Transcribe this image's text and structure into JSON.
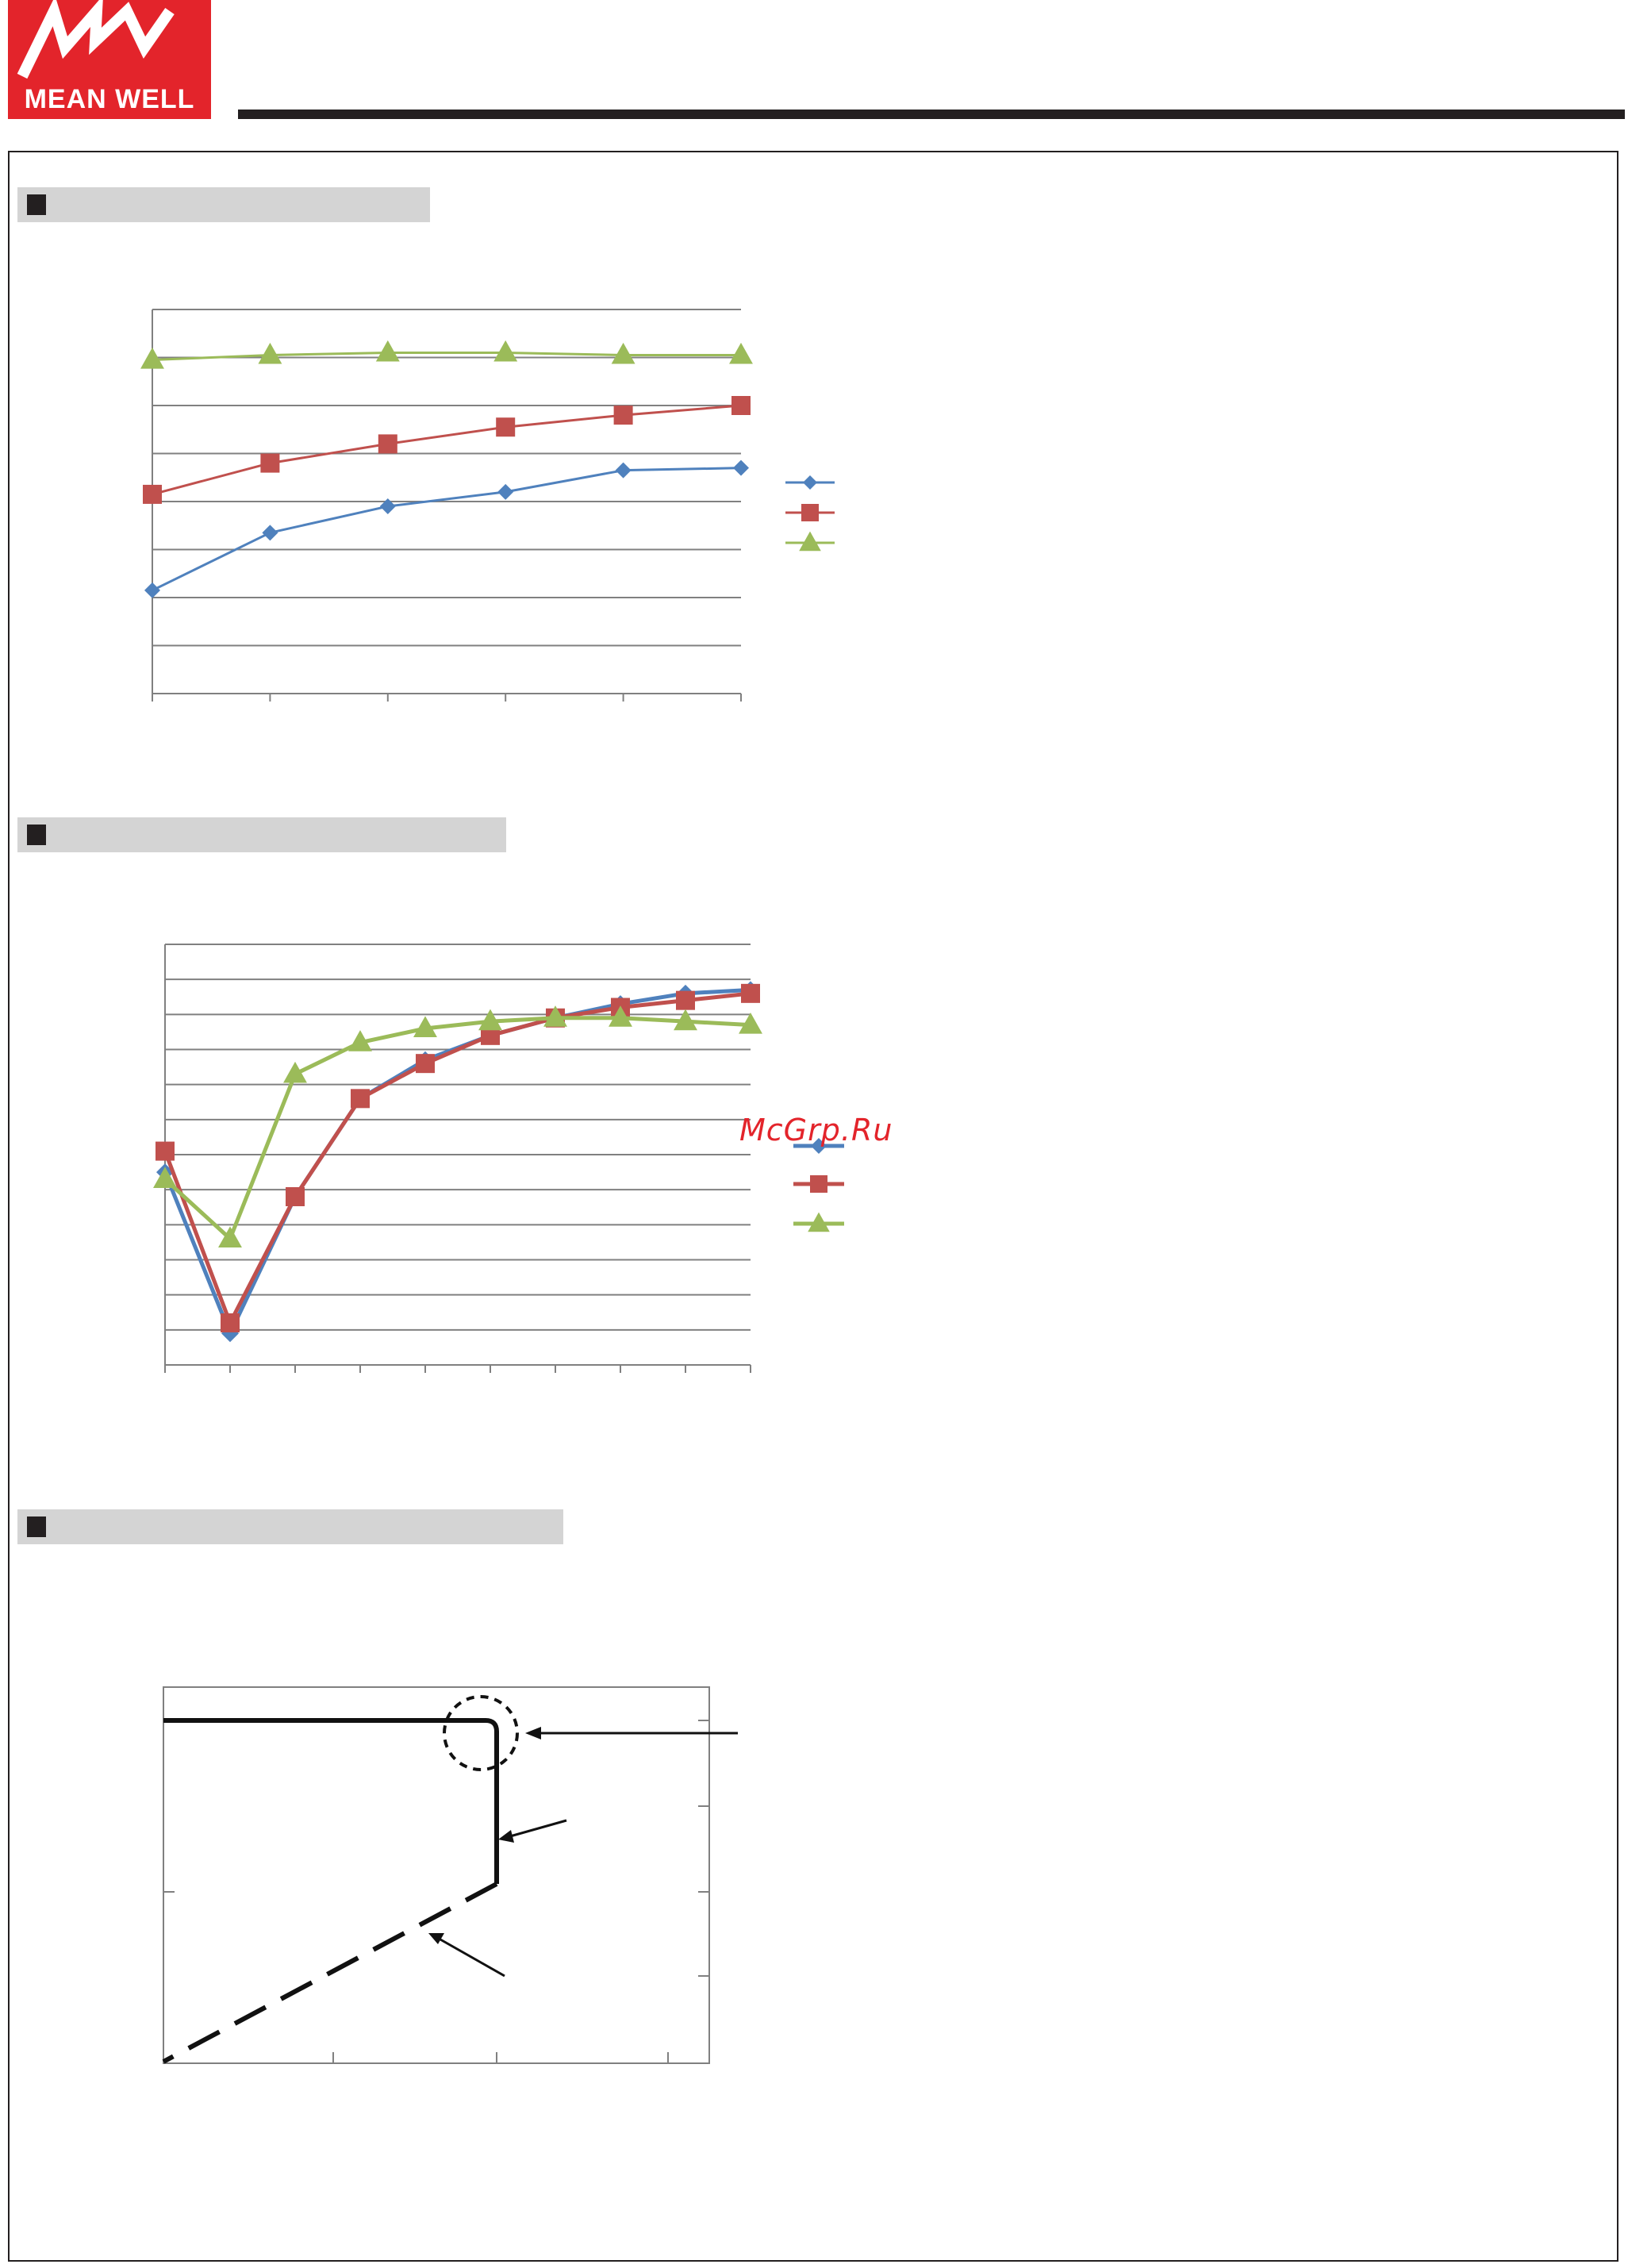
{
  "brand": {
    "logo_text": "MEAN WELL",
    "logo_color": "#e3242b",
    "rule_color": "#231f20"
  },
  "watermark": "McGrp.Ru",
  "colors": {
    "series_blue": "#4f81bd",
    "series_red": "#c0504d",
    "series_green": "#9bbb59",
    "axis": "#808080",
    "section_bar": "#d4d4d4",
    "section_marker": "#231f20"
  },
  "chart_data": [
    {
      "type": "line",
      "x": [
        0,
        1,
        2,
        3,
        4,
        5
      ],
      "ylim": [
        0,
        8
      ],
      "grid": true,
      "legend": "right",
      "series": [
        {
          "marker": "diamond",
          "color": "#4f81bd",
          "values": [
            2.15,
            3.35,
            3.9,
            4.2,
            4.65,
            4.7
          ]
        },
        {
          "marker": "square",
          "color": "#c0504d",
          "values": [
            4.15,
            4.8,
            5.2,
            5.55,
            5.8,
            6.0
          ]
        },
        {
          "marker": "triangle",
          "color": "#9bbb59",
          "values": [
            6.95,
            7.05,
            7.1,
            7.1,
            7.05,
            7.05
          ]
        }
      ]
    },
    {
      "type": "line",
      "x": [
        0,
        1,
        2,
        3,
        4,
        5,
        6,
        7,
        8,
        9
      ],
      "ylim": [
        0,
        12
      ],
      "grid": true,
      "legend": "right",
      "series": [
        {
          "marker": "diamond",
          "color": "#4f81bd",
          "values": [
            5.5,
            0.9,
            4.8,
            7.6,
            8.7,
            9.4,
            9.9,
            10.3,
            10.6,
            10.7
          ]
        },
        {
          "marker": "square",
          "color": "#c0504d",
          "values": [
            6.1,
            1.2,
            4.8,
            7.6,
            8.6,
            9.4,
            9.9,
            10.2,
            10.4,
            10.6
          ]
        },
        {
          "marker": "triangle",
          "color": "#9bbb59",
          "values": [
            5.3,
            3.6,
            8.3,
            9.2,
            9.6,
            9.8,
            9.9,
            9.9,
            9.8,
            9.7
          ]
        }
      ]
    }
  ]
}
